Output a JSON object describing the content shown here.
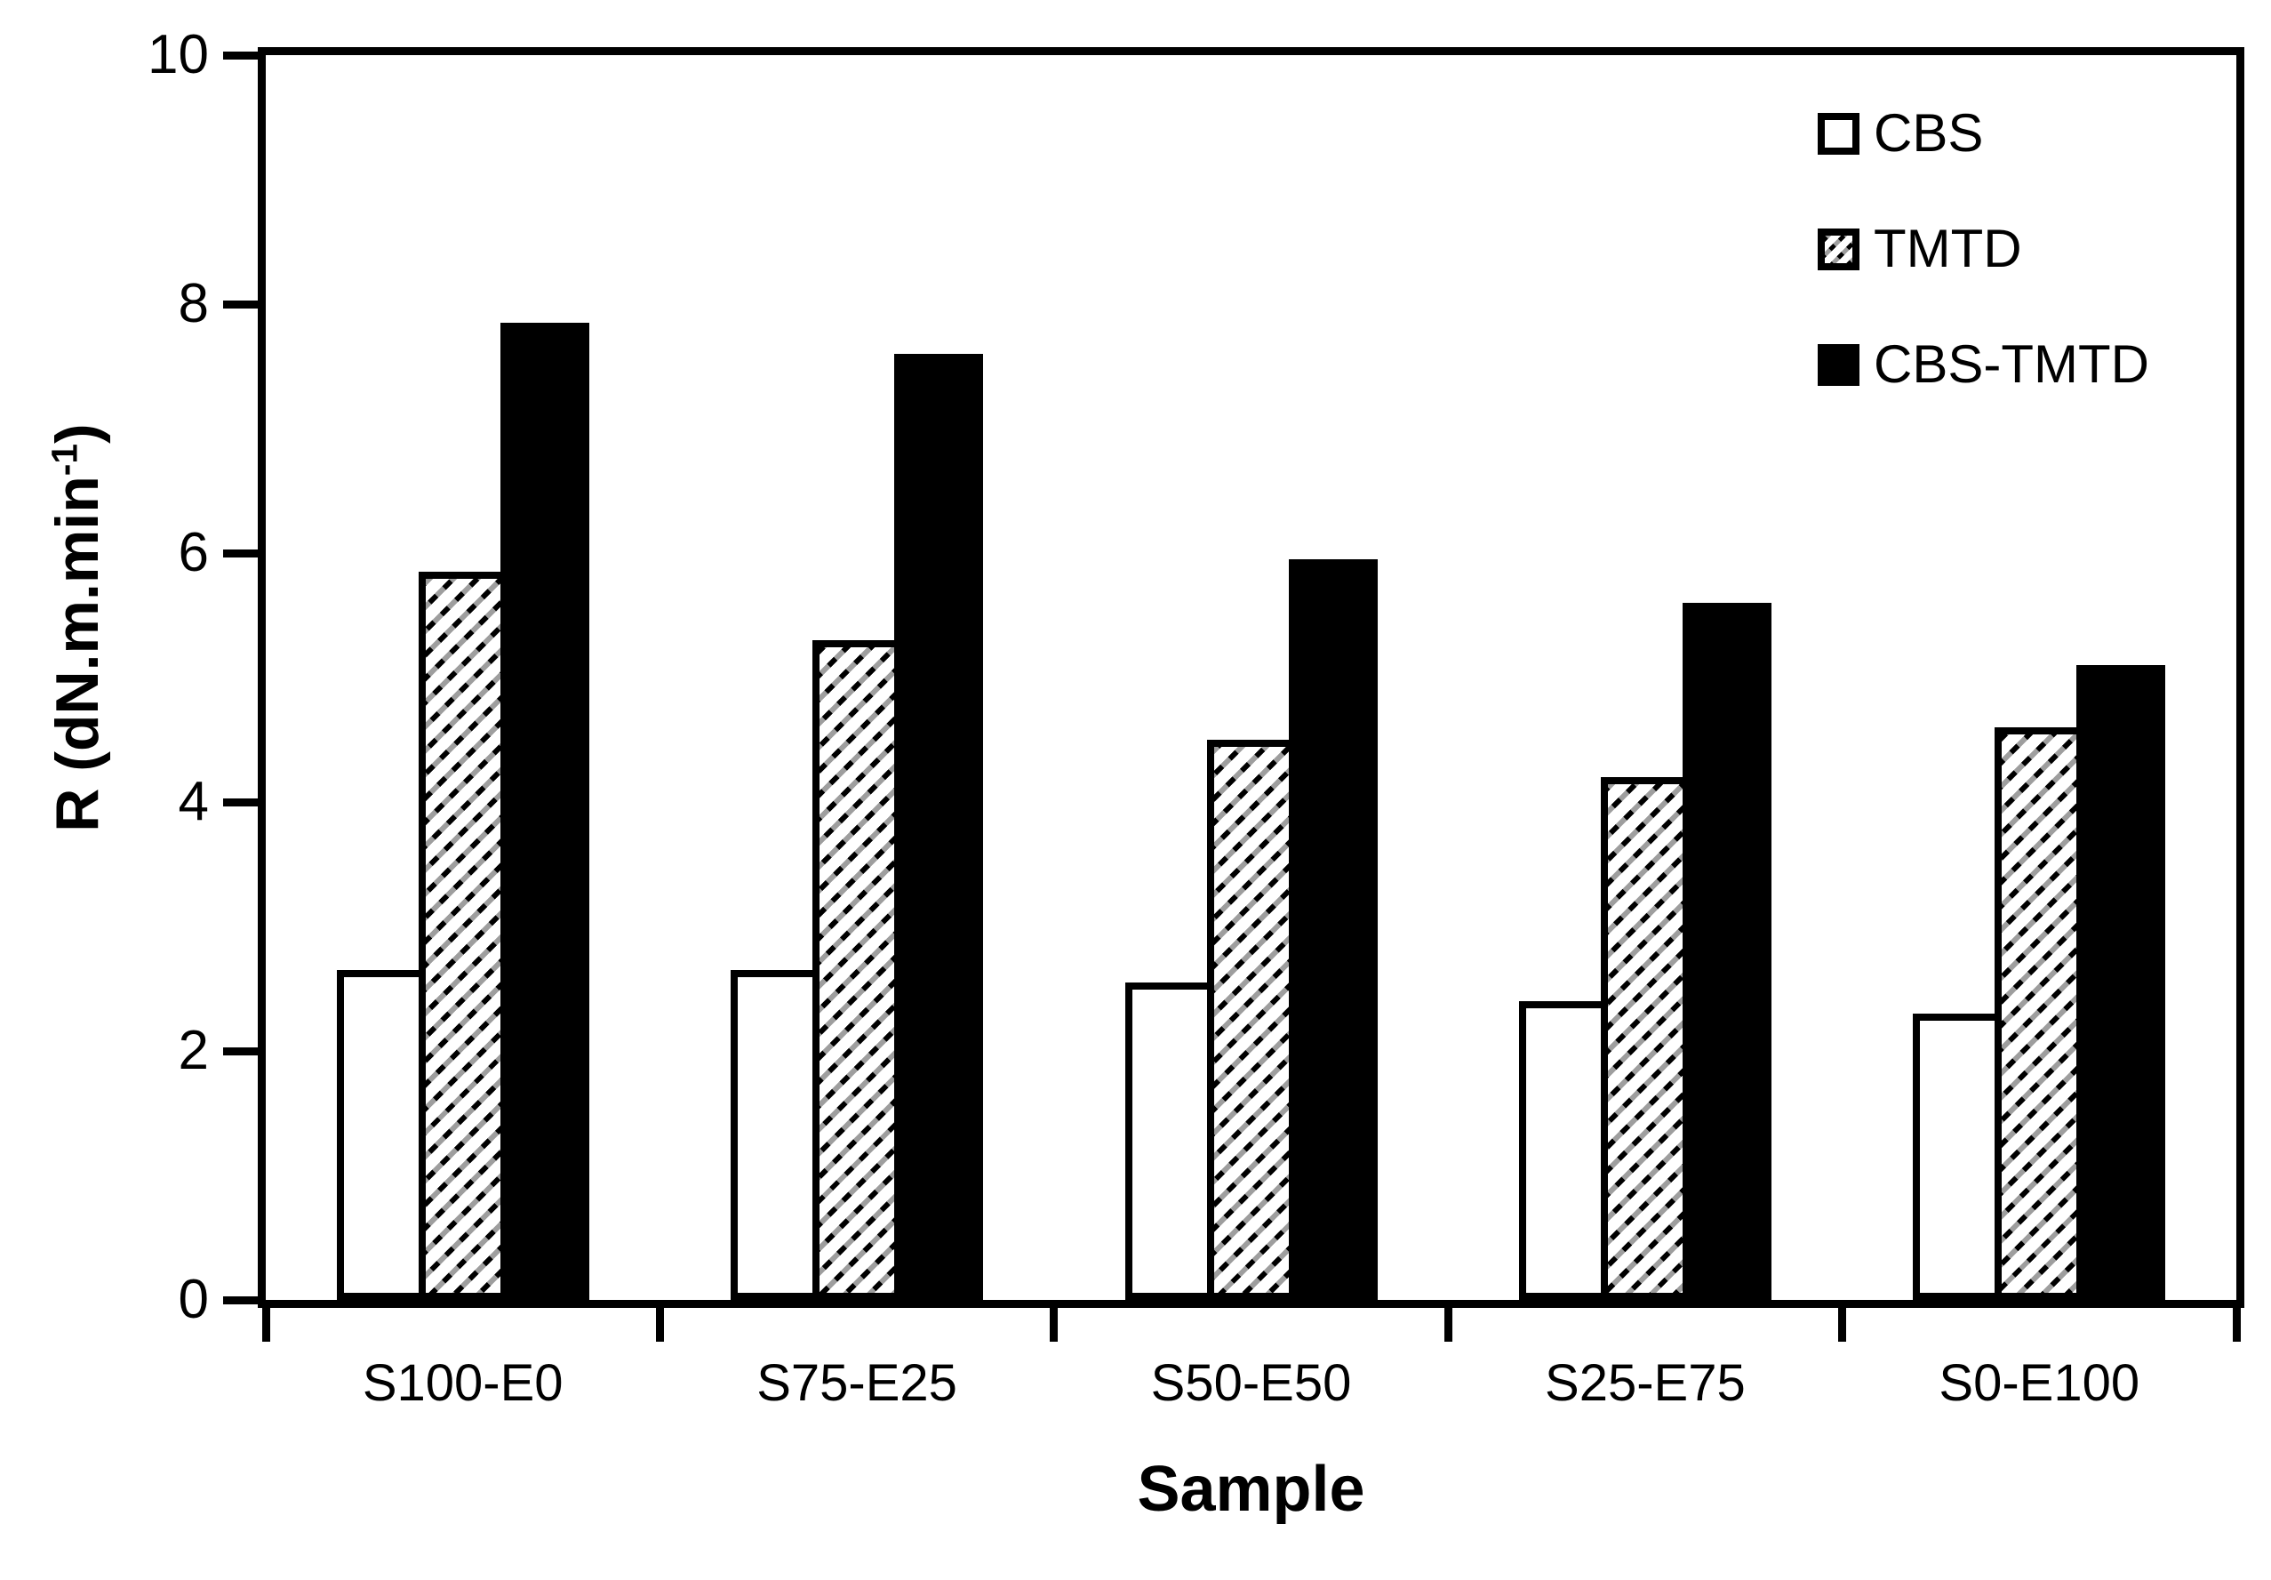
{
  "chart_data": {
    "type": "bar",
    "title": "",
    "xlabel": "Sample",
    "ylabel": "R (dN.m.min⁻¹)",
    "ylabel_parts": {
      "prefix": "R (dN.m.min",
      "superscript": "-1",
      "suffix": ")"
    },
    "categories": [
      "S100-E0",
      "S75-E25",
      "S50-E50",
      "S25-E75",
      "S0-E100"
    ],
    "series": [
      {
        "name": "CBS",
        "pattern": "white-outline",
        "values": [
          2.65,
          2.65,
          2.55,
          2.4,
          2.3
        ]
      },
      {
        "name": "TMTD",
        "pattern": "diagonal-hatch",
        "values": [
          5.85,
          5.3,
          4.5,
          4.2,
          4.6
        ]
      },
      {
        "name": "CBS-TMTD",
        "pattern": "solid-black",
        "values": [
          7.85,
          7.6,
          5.95,
          5.6,
          5.1
        ]
      }
    ],
    "ylim": [
      0,
      10
    ],
    "yticks": [
      0,
      2,
      4,
      6,
      8,
      10
    ],
    "legend_position": "top-right",
    "grid": false,
    "colors": {
      "foreground": "#000000",
      "background": "#ffffff"
    }
  }
}
